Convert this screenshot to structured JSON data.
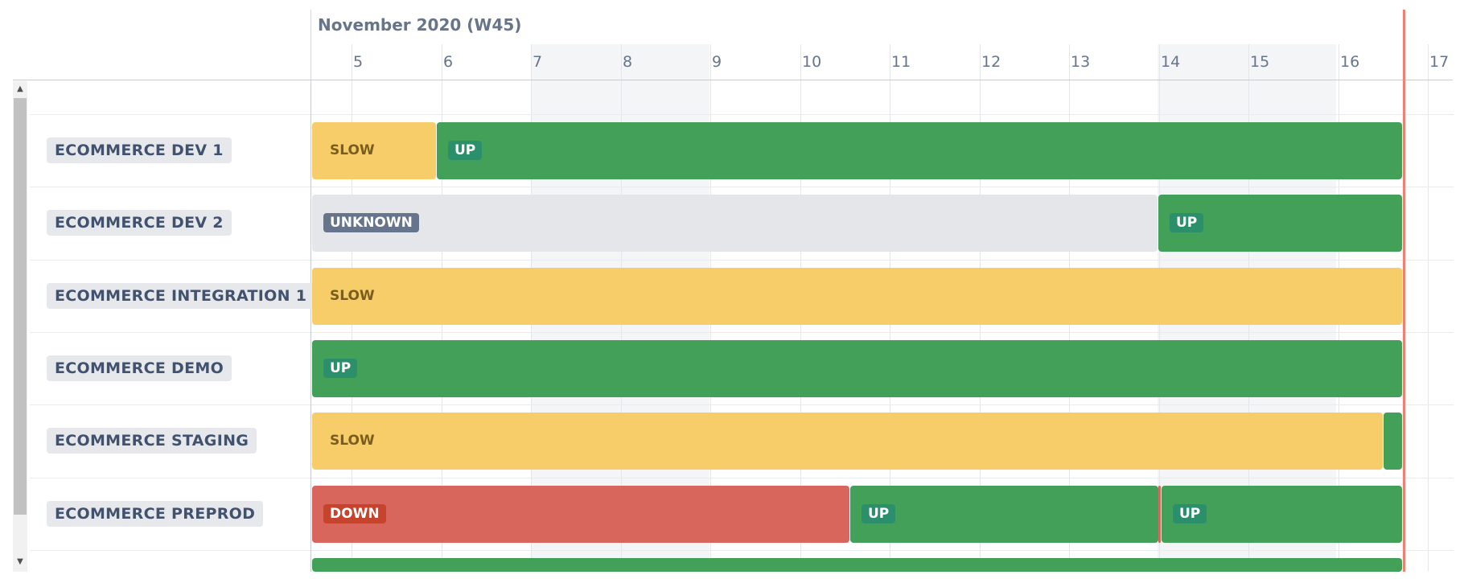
{
  "timeline": {
    "month_label": "November 2020 (W45)",
    "days": [
      "5",
      "6",
      "7",
      "8",
      "9",
      "10",
      "11",
      "12",
      "13",
      "14",
      "15",
      "16",
      "17"
    ]
  },
  "rows": [
    {
      "label": "ECOMMERCE DEV 1",
      "segments": [
        {
          "status": "SLOW",
          "start": 0.0,
          "end": 0.1143
        },
        {
          "status": "UP",
          "start": 0.1143,
          "end": 1.0
        }
      ]
    },
    {
      "label": "ECOMMERCE DEV 2",
      "segments": [
        {
          "status": "UNKNOWN",
          "start": 0.0,
          "end": 0.776
        },
        {
          "status": "UP",
          "start": 0.776,
          "end": 1.0
        }
      ]
    },
    {
      "label": "ECOMMERCE INTEGRATION 1",
      "segments": [
        {
          "status": "SLOW",
          "start": 0.0,
          "end": 1.0
        }
      ]
    },
    {
      "label": "ECOMMERCE DEMO",
      "segments": [
        {
          "status": "UP",
          "start": 0.0,
          "end": 1.0
        }
      ]
    },
    {
      "label": "ECOMMERCE STAGING",
      "segments": [
        {
          "status": "SLOW",
          "start": 0.0,
          "end": 0.982
        },
        {
          "status": "UP",
          "start": 0.982,
          "end": 1.0,
          "hide_label": true
        }
      ]
    },
    {
      "label": "ECOMMERCE PREPROD",
      "segments": [
        {
          "status": "DOWN",
          "start": 0.0,
          "end": 0.493
        },
        {
          "status": "UP",
          "start": 0.493,
          "end": 0.776
        },
        {
          "status": "DOWN",
          "start": 0.776,
          "end": 0.779,
          "hide_label": true
        },
        {
          "status": "UP",
          "start": 0.779,
          "end": 1.0
        }
      ]
    },
    {
      "label": "",
      "segments": [
        {
          "status": "UP",
          "start": 0.0,
          "end": 1.0,
          "hide_label": true
        }
      ]
    }
  ],
  "colors": {
    "up": "#42a058",
    "slow": "#f6cd68",
    "unknown": "#e4e6ea",
    "down": "#d9665c",
    "now_marker": "#f08072"
  },
  "icons": {
    "scroll_up": "scroll-up-icon",
    "scroll_down": "scroll-down-icon"
  }
}
